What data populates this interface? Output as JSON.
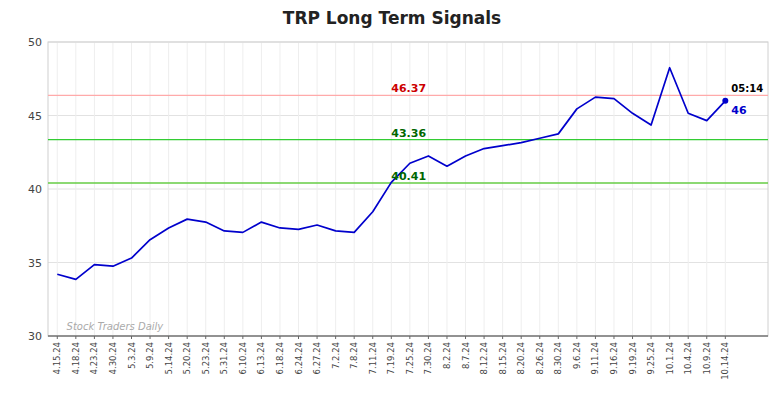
{
  "chart_data": {
    "type": "line",
    "title": "TRP Long Term Signals",
    "watermark": "Stock Traders Daily",
    "categories": [
      "4.15.24",
      "4.18.24",
      "4.23.24",
      "4.30.24",
      "5.3.24",
      "5.9.24",
      "5.14.24",
      "5.20.24",
      "5.23.24",
      "5.31.24",
      "6.10.24",
      "6.13.24",
      "6.18.24",
      "6.24.24",
      "6.27.24",
      "7.2.24",
      "7.8.24",
      "7.11.24",
      "7.19.24",
      "7.25.24",
      "7.30.24",
      "8.2.24",
      "8.7.24",
      "8.12.24",
      "8.15.24",
      "8.20.24",
      "8.26.24",
      "8.30.24",
      "9.6.24",
      "9.11.24",
      "9.16.24",
      "9.19.24",
      "9.25.24",
      "10.1.24",
      "10.4.24",
      "10.9.24",
      "10.14.24"
    ],
    "values": [
      34.2,
      33.85,
      34.85,
      34.75,
      35.3,
      36.55,
      37.35,
      37.95,
      37.75,
      37.15,
      37.05,
      37.75,
      37.35,
      37.25,
      37.55,
      37.15,
      37.05,
      38.45,
      40.45,
      41.75,
      42.25,
      41.55,
      42.25,
      42.75,
      42.95,
      43.15,
      43.45,
      43.75,
      45.45,
      46.25,
      46.15,
      45.15,
      44.35,
      48.25,
      45.15,
      44.65,
      46.0
    ],
    "value_labels": [
      null,
      null,
      null,
      null,
      null,
      null,
      null,
      null,
      null,
      null,
      null,
      null,
      null,
      null,
      null,
      null,
      null,
      null,
      null,
      null,
      null,
      null,
      null,
      null,
      null,
      null,
      null,
      null,
      null,
      null,
      null,
      null,
      null,
      null,
      null,
      null,
      "46"
    ],
    "color": "#0000cc",
    "annotations": [
      "05:14"
    ],
    "reference_lines": [
      {
        "value": 46.37,
        "label": "46.37",
        "color": "#ffaaaa",
        "label_color": "#cc0000"
      },
      {
        "value": 43.36,
        "label": "43.36",
        "color": "#33cc33",
        "label_color": "#006600"
      },
      {
        "value": 40.41,
        "label": "40.41",
        "color": "#66cc44",
        "label_color": "#006600"
      }
    ],
    "ylim": [
      30,
      50
    ],
    "yticks": [
      30,
      35,
      40,
      45,
      50
    ],
    "grid": true
  }
}
